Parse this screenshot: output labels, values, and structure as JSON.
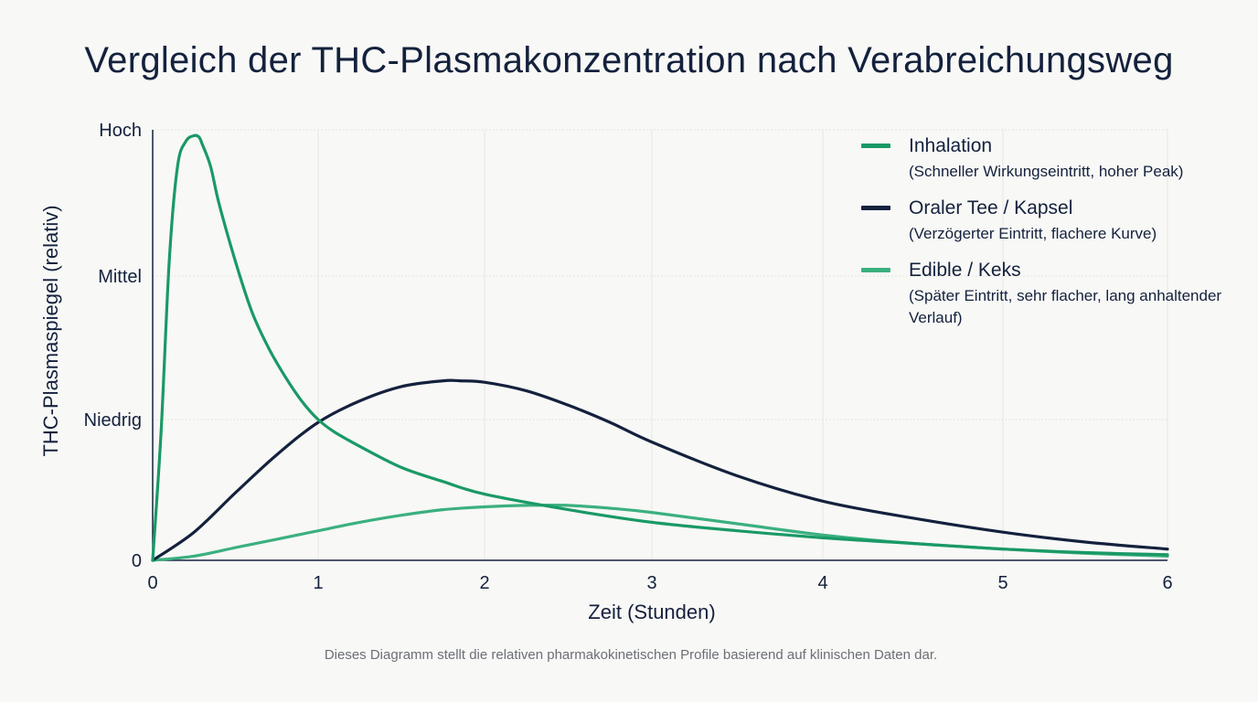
{
  "chart_data": {
    "type": "line",
    "title": "Vergleich der THC-Plasmakonzentration nach Verabreichungsweg",
    "xlabel": "Zeit (Stunden)",
    "ylabel": "THC-Plasmaspiegel (relativ)",
    "xlim": [
      0,
      6
    ],
    "ylim": [
      0,
      3
    ],
    "x_ticks": [
      "0",
      "1",
      "2",
      "3",
      "4",
      "5",
      "6"
    ],
    "y_ticks": [
      {
        "value": 0,
        "label": "0"
      },
      {
        "value": 1,
        "label": "Niedrig"
      },
      {
        "value": 2,
        "label": "Mittel"
      },
      {
        "value": 3,
        "label": "Hoch"
      }
    ],
    "grid": true,
    "legend_position": "right",
    "footnote": "Dieses Diagramm stellt die relativen pharmakokinetischen Profile basierend auf klinischen Daten dar.",
    "series": [
      {
        "name": "Inhalation",
        "description": "(Schneller Wirkungseintritt, hoher Peak)",
        "color": "#1a9966",
        "x": [
          0,
          0.05,
          0.1,
          0.15,
          0.2,
          0.25,
          0.28,
          0.3,
          0.35,
          0.4,
          0.5,
          0.6,
          0.7,
          0.8,
          0.9,
          1.0,
          1.1,
          1.25,
          1.5,
          1.75,
          2.0,
          2.5,
          3.0,
          3.5,
          4.0,
          4.5,
          5.0,
          5.5,
          6.0
        ],
        "values": [
          0,
          0.9,
          2.1,
          2.75,
          2.92,
          2.96,
          2.95,
          2.9,
          2.75,
          2.5,
          2.1,
          1.75,
          1.5,
          1.3,
          1.13,
          1.0,
          0.91,
          0.81,
          0.66,
          0.56,
          0.47,
          0.36,
          0.27,
          0.21,
          0.16,
          0.12,
          0.08,
          0.055,
          0.04
        ]
      },
      {
        "name": "Oraler Tee / Kapsel",
        "description": "(Verzögerter Eintritt, flachere Kurve)",
        "color": "#14213d",
        "x": [
          0,
          0.25,
          0.5,
          0.75,
          1.0,
          1.25,
          1.5,
          1.75,
          1.85,
          2.0,
          2.25,
          2.5,
          2.75,
          3.0,
          3.5,
          4.0,
          4.5,
          5.0,
          5.5,
          6.0
        ],
        "values": [
          0,
          0.2,
          0.48,
          0.75,
          0.98,
          1.13,
          1.23,
          1.27,
          1.27,
          1.26,
          1.2,
          1.1,
          0.98,
          0.84,
          0.6,
          0.42,
          0.3,
          0.2,
          0.13,
          0.08
        ]
      },
      {
        "name": "Edible / Keks",
        "description": "(Später Eintritt, sehr flacher, lang anhaltender Verlauf)",
        "color": "#3bb07f",
        "x": [
          0,
          0.25,
          0.5,
          0.75,
          1.0,
          1.25,
          1.5,
          1.75,
          2.0,
          2.25,
          2.5,
          2.75,
          3.0,
          3.5,
          4.0,
          4.5,
          5.0,
          5.5,
          6.0
        ],
        "values": [
          0,
          0.03,
          0.09,
          0.15,
          0.21,
          0.27,
          0.32,
          0.36,
          0.38,
          0.39,
          0.39,
          0.37,
          0.34,
          0.26,
          0.18,
          0.12,
          0.08,
          0.05,
          0.03
        ]
      }
    ]
  }
}
